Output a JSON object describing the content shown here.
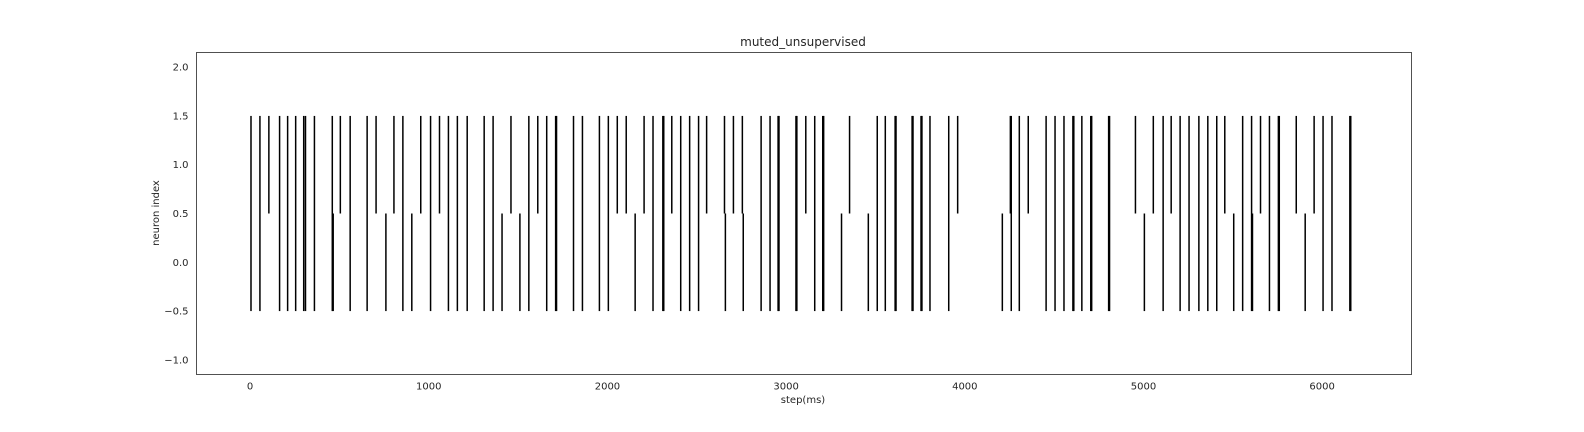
{
  "chart_data": {
    "type": "eventplot",
    "title": "muted_unsupervised",
    "xlabel": "step(ms)",
    "ylabel": "neuron index",
    "xlim": [
      -300,
      6500
    ],
    "ylim": [
      -1.15,
      2.15
    ],
    "xticks": [
      0,
      1000,
      2000,
      3000,
      4000,
      5000,
      6000
    ],
    "xtick_labels": [
      "0",
      "1000",
      "2000",
      "3000",
      "4000",
      "5000",
      "6000"
    ],
    "yticks": [
      2.0,
      1.5,
      1.0,
      0.5,
      0.0,
      -0.5,
      -1.0
    ],
    "ytick_labels": [
      "2.0",
      "1.5",
      "1.0",
      "0.5",
      "0.0",
      "−0.5",
      "−1.0"
    ],
    "grid": false,
    "series": [
      {
        "neuron": 0,
        "line_range": [
          -0.5,
          0.5
        ],
        "color": "#000000",
        "events": [
          5,
          55,
          165,
          210,
          255,
          300,
          310,
          360,
          460,
          465,
          560,
          655,
          760,
          855,
          905,
          1010,
          1110,
          1160,
          1215,
          1310,
          1360,
          1410,
          1510,
          1560,
          1660,
          1710,
          1715,
          1810,
          1860,
          1955,
          2005,
          2155,
          2255,
          2310,
          2315,
          2410,
          2460,
          2510,
          2660,
          2760,
          2860,
          2910,
          2955,
          2960,
          3055,
          3060,
          3160,
          3205,
          3210,
          3310,
          3460,
          3510,
          3555,
          3610,
          3615,
          3705,
          3710,
          3755,
          3760,
          3805,
          3910,
          4210,
          4260,
          4305,
          4455,
          4505,
          4555,
          4605,
          4610,
          4655,
          4705,
          4710,
          4805,
          4810,
          5005,
          5110,
          5205,
          5255,
          5310,
          5360,
          5410,
          5505,
          5555,
          5605,
          5610,
          5705,
          5755,
          5760,
          5905,
          6005,
          6055,
          6155,
          6160
        ]
      },
      {
        "neuron": 1,
        "line_range": [
          0.5,
          1.5
        ],
        "color": "#000000",
        "events": [
          5,
          55,
          105,
          165,
          210,
          255,
          300,
          310,
          360,
          460,
          505,
          560,
          655,
          705,
          805,
          855,
          955,
          1010,
          1060,
          1110,
          1160,
          1215,
          1310,
          1360,
          1460,
          1560,
          1610,
          1660,
          1710,
          1715,
          1810,
          1860,
          1955,
          2005,
          2055,
          2105,
          2205,
          2255,
          2310,
          2315,
          2360,
          2410,
          2460,
          2510,
          2555,
          2655,
          2705,
          2755,
          2860,
          2910,
          2955,
          2960,
          3055,
          3060,
          3110,
          3160,
          3205,
          3210,
          3355,
          3510,
          3555,
          3610,
          3615,
          3705,
          3710,
          3755,
          3760,
          3805,
          3910,
          3960,
          4255,
          4260,
          4305,
          4355,
          4455,
          4505,
          4555,
          4605,
          4610,
          4655,
          4705,
          4710,
          4805,
          4810,
          4955,
          5055,
          5110,
          5155,
          5205,
          5255,
          5310,
          5360,
          5410,
          5455,
          5555,
          5605,
          5655,
          5705,
          5755,
          5760,
          5855,
          5955,
          6005,
          6055,
          6155,
          6160
        ]
      }
    ]
  }
}
